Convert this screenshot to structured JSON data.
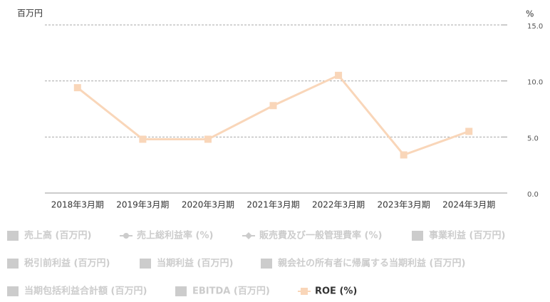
{
  "chart_data": {
    "type": "line",
    "y_label": "百万円",
    "y2_label": "%",
    "categories": [
      "2018年3月期",
      "2019年3月期",
      "2020年3月期",
      "2021年3月期",
      "2022年3月期",
      "2023年3月期",
      "2024年3月期"
    ],
    "y2lim": [
      0,
      15
    ],
    "y2ticks": [
      {
        "value": 0,
        "label": "0.0"
      },
      {
        "value": 5,
        "label": "5.0"
      },
      {
        "value": 10,
        "label": "10.0"
      },
      {
        "value": 15,
        "label": "15.0"
      }
    ],
    "grid": true,
    "series": [
      {
        "name": "売上高 (百万円)",
        "marker": "bar",
        "visible": false
      },
      {
        "name": "売上総利益率 (%)",
        "marker": "circle-line",
        "visible": false
      },
      {
        "name": "販売費及び一般管理費率 (%)",
        "marker": "diamond-line",
        "visible": false
      },
      {
        "name": "事業利益 (百万円)",
        "marker": "bar",
        "visible": false
      },
      {
        "name": "税引前利益 (百万円)",
        "marker": "bar",
        "visible": false
      },
      {
        "name": "当期利益 (百万円)",
        "marker": "bar",
        "visible": false
      },
      {
        "name": "親会社の所有者に帰属する当期利益 (百万円)",
        "marker": "bar",
        "visible": false
      },
      {
        "name": "当期包括利益合計額 (百万円)",
        "marker": "bar",
        "visible": false
      },
      {
        "name": "EBITDA (百万円)",
        "marker": "bar",
        "visible": false
      },
      {
        "name": "ROE (%)",
        "marker": "square-line",
        "visible": true,
        "color": "#f9d6b9",
        "axis": "y2",
        "values": [
          9.4,
          4.8,
          4.8,
          7.8,
          10.5,
          3.4,
          5.5
        ]
      }
    ]
  }
}
